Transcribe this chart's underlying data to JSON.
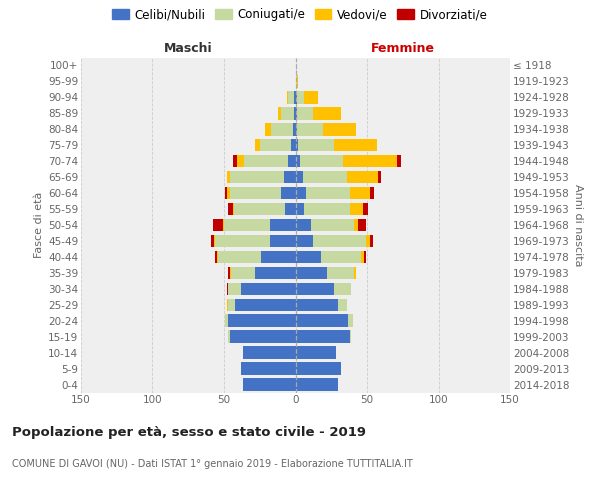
{
  "age_groups": [
    "0-4",
    "5-9",
    "10-14",
    "15-19",
    "20-24",
    "25-29",
    "30-34",
    "35-39",
    "40-44",
    "45-49",
    "50-54",
    "55-59",
    "60-64",
    "65-69",
    "70-74",
    "75-79",
    "80-84",
    "85-89",
    "90-94",
    "95-99",
    "100+"
  ],
  "birth_years": [
    "2014-2018",
    "2009-2013",
    "2004-2008",
    "1999-2003",
    "1994-1998",
    "1989-1993",
    "1984-1988",
    "1979-1983",
    "1974-1978",
    "1969-1973",
    "1964-1968",
    "1959-1963",
    "1954-1958",
    "1949-1953",
    "1944-1948",
    "1939-1943",
    "1934-1938",
    "1929-1933",
    "1924-1928",
    "1919-1923",
    "≤ 1918"
  ],
  "males": {
    "celibi": [
      37,
      38,
      37,
      46,
      47,
      42,
      38,
      28,
      24,
      18,
      18,
      7,
      10,
      8,
      5,
      3,
      2,
      1,
      1,
      0,
      0
    ],
    "coniugati": [
      0,
      0,
      0,
      1,
      2,
      5,
      9,
      17,
      30,
      38,
      32,
      36,
      36,
      38,
      31,
      22,
      15,
      9,
      4,
      0,
      0
    ],
    "vedovi": [
      0,
      0,
      0,
      0,
      0,
      1,
      0,
      1,
      1,
      1,
      1,
      1,
      2,
      2,
      5,
      3,
      4,
      2,
      1,
      0,
      0
    ],
    "divorziati": [
      0,
      0,
      0,
      0,
      0,
      0,
      1,
      1,
      1,
      2,
      7,
      3,
      1,
      0,
      3,
      0,
      0,
      0,
      0,
      0,
      0
    ]
  },
  "females": {
    "nubili": [
      30,
      32,
      28,
      38,
      37,
      30,
      27,
      22,
      18,
      12,
      11,
      6,
      7,
      5,
      3,
      2,
      1,
      1,
      1,
      0,
      0
    ],
    "coniugate": [
      0,
      0,
      0,
      1,
      3,
      6,
      12,
      19,
      28,
      37,
      30,
      32,
      31,
      31,
      30,
      25,
      18,
      11,
      5,
      1,
      0
    ],
    "vedove": [
      0,
      0,
      0,
      0,
      0,
      0,
      0,
      1,
      2,
      3,
      3,
      9,
      14,
      22,
      38,
      30,
      23,
      20,
      10,
      1,
      0
    ],
    "divorziate": [
      0,
      0,
      0,
      0,
      0,
      0,
      0,
      0,
      1,
      2,
      5,
      4,
      3,
      2,
      3,
      0,
      0,
      0,
      0,
      0,
      0
    ]
  },
  "colors": {
    "celibi": "#4472c4",
    "coniugati": "#c6d9a0",
    "vedovi": "#ffc000",
    "divorziati": "#c00000"
  },
  "xlim": 150,
  "title": "Popolazione per età, sesso e stato civile - 2019",
  "subtitle": "COMUNE DI GAVOI (NU) - Dati ISTAT 1° gennaio 2019 - Elaborazione TUTTITALIA.IT",
  "ylabel_left": "Fasce di età",
  "ylabel_right": "Anni di nascita",
  "xlabel_left": "Maschi",
  "xlabel_right": "Femmine",
  "bg_color": "#efefef",
  "grid_color": "#cccccc"
}
